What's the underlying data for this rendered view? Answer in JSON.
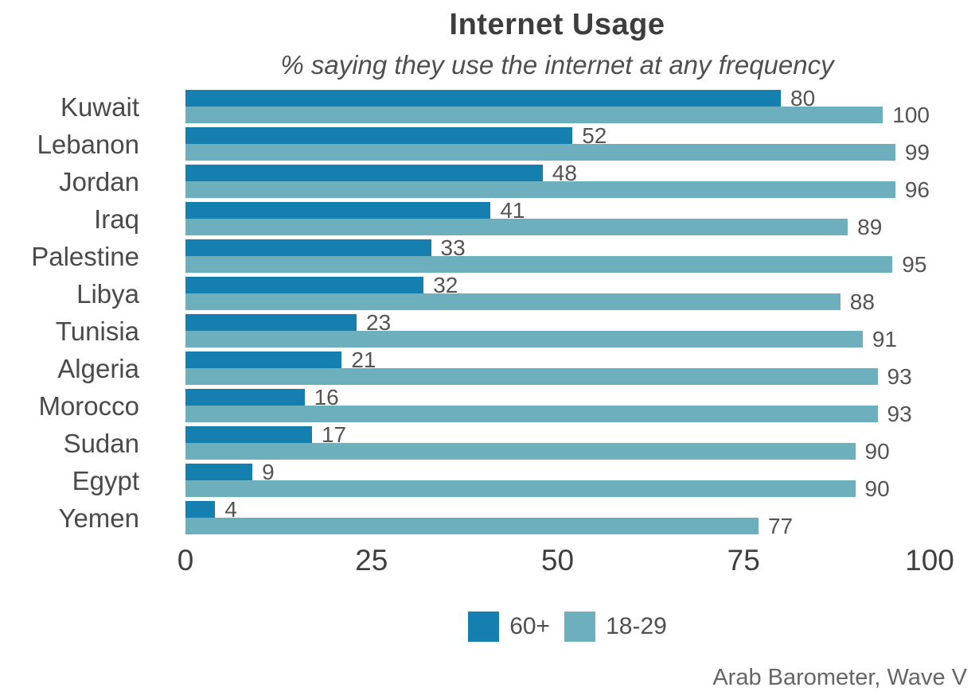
{
  "chart_data": {
    "type": "bar",
    "orientation": "horizontal",
    "title": "Internet Usage",
    "subtitle": "% saying they use the internet at any frequency",
    "source": "Arab Barometer, Wave V",
    "categories": [
      "Kuwait",
      "Lebanon",
      "Jordan",
      "Iraq",
      "Palestine",
      "Libya",
      "Tunisia",
      "Algeria",
      "Morocco",
      "Sudan",
      "Egypt",
      "Yemen"
    ],
    "series": [
      {
        "name": "60+",
        "color": "#1580af",
        "values": [
          80,
          52,
          48,
          41,
          33,
          32,
          23,
          21,
          16,
          17,
          9,
          4
        ]
      },
      {
        "name": "18-29",
        "color": "#6dafbd",
        "values": [
          100,
          99,
          96,
          89,
          95,
          88,
          91,
          93,
          93,
          90,
          90,
          77
        ]
      }
    ],
    "xlim": [
      0,
      100
    ],
    "xticks": [
      0,
      25,
      50,
      75,
      100
    ],
    "value_labels": true,
    "grid": false,
    "legend_position": "bottom",
    "text_color": "#4a4a4a"
  }
}
